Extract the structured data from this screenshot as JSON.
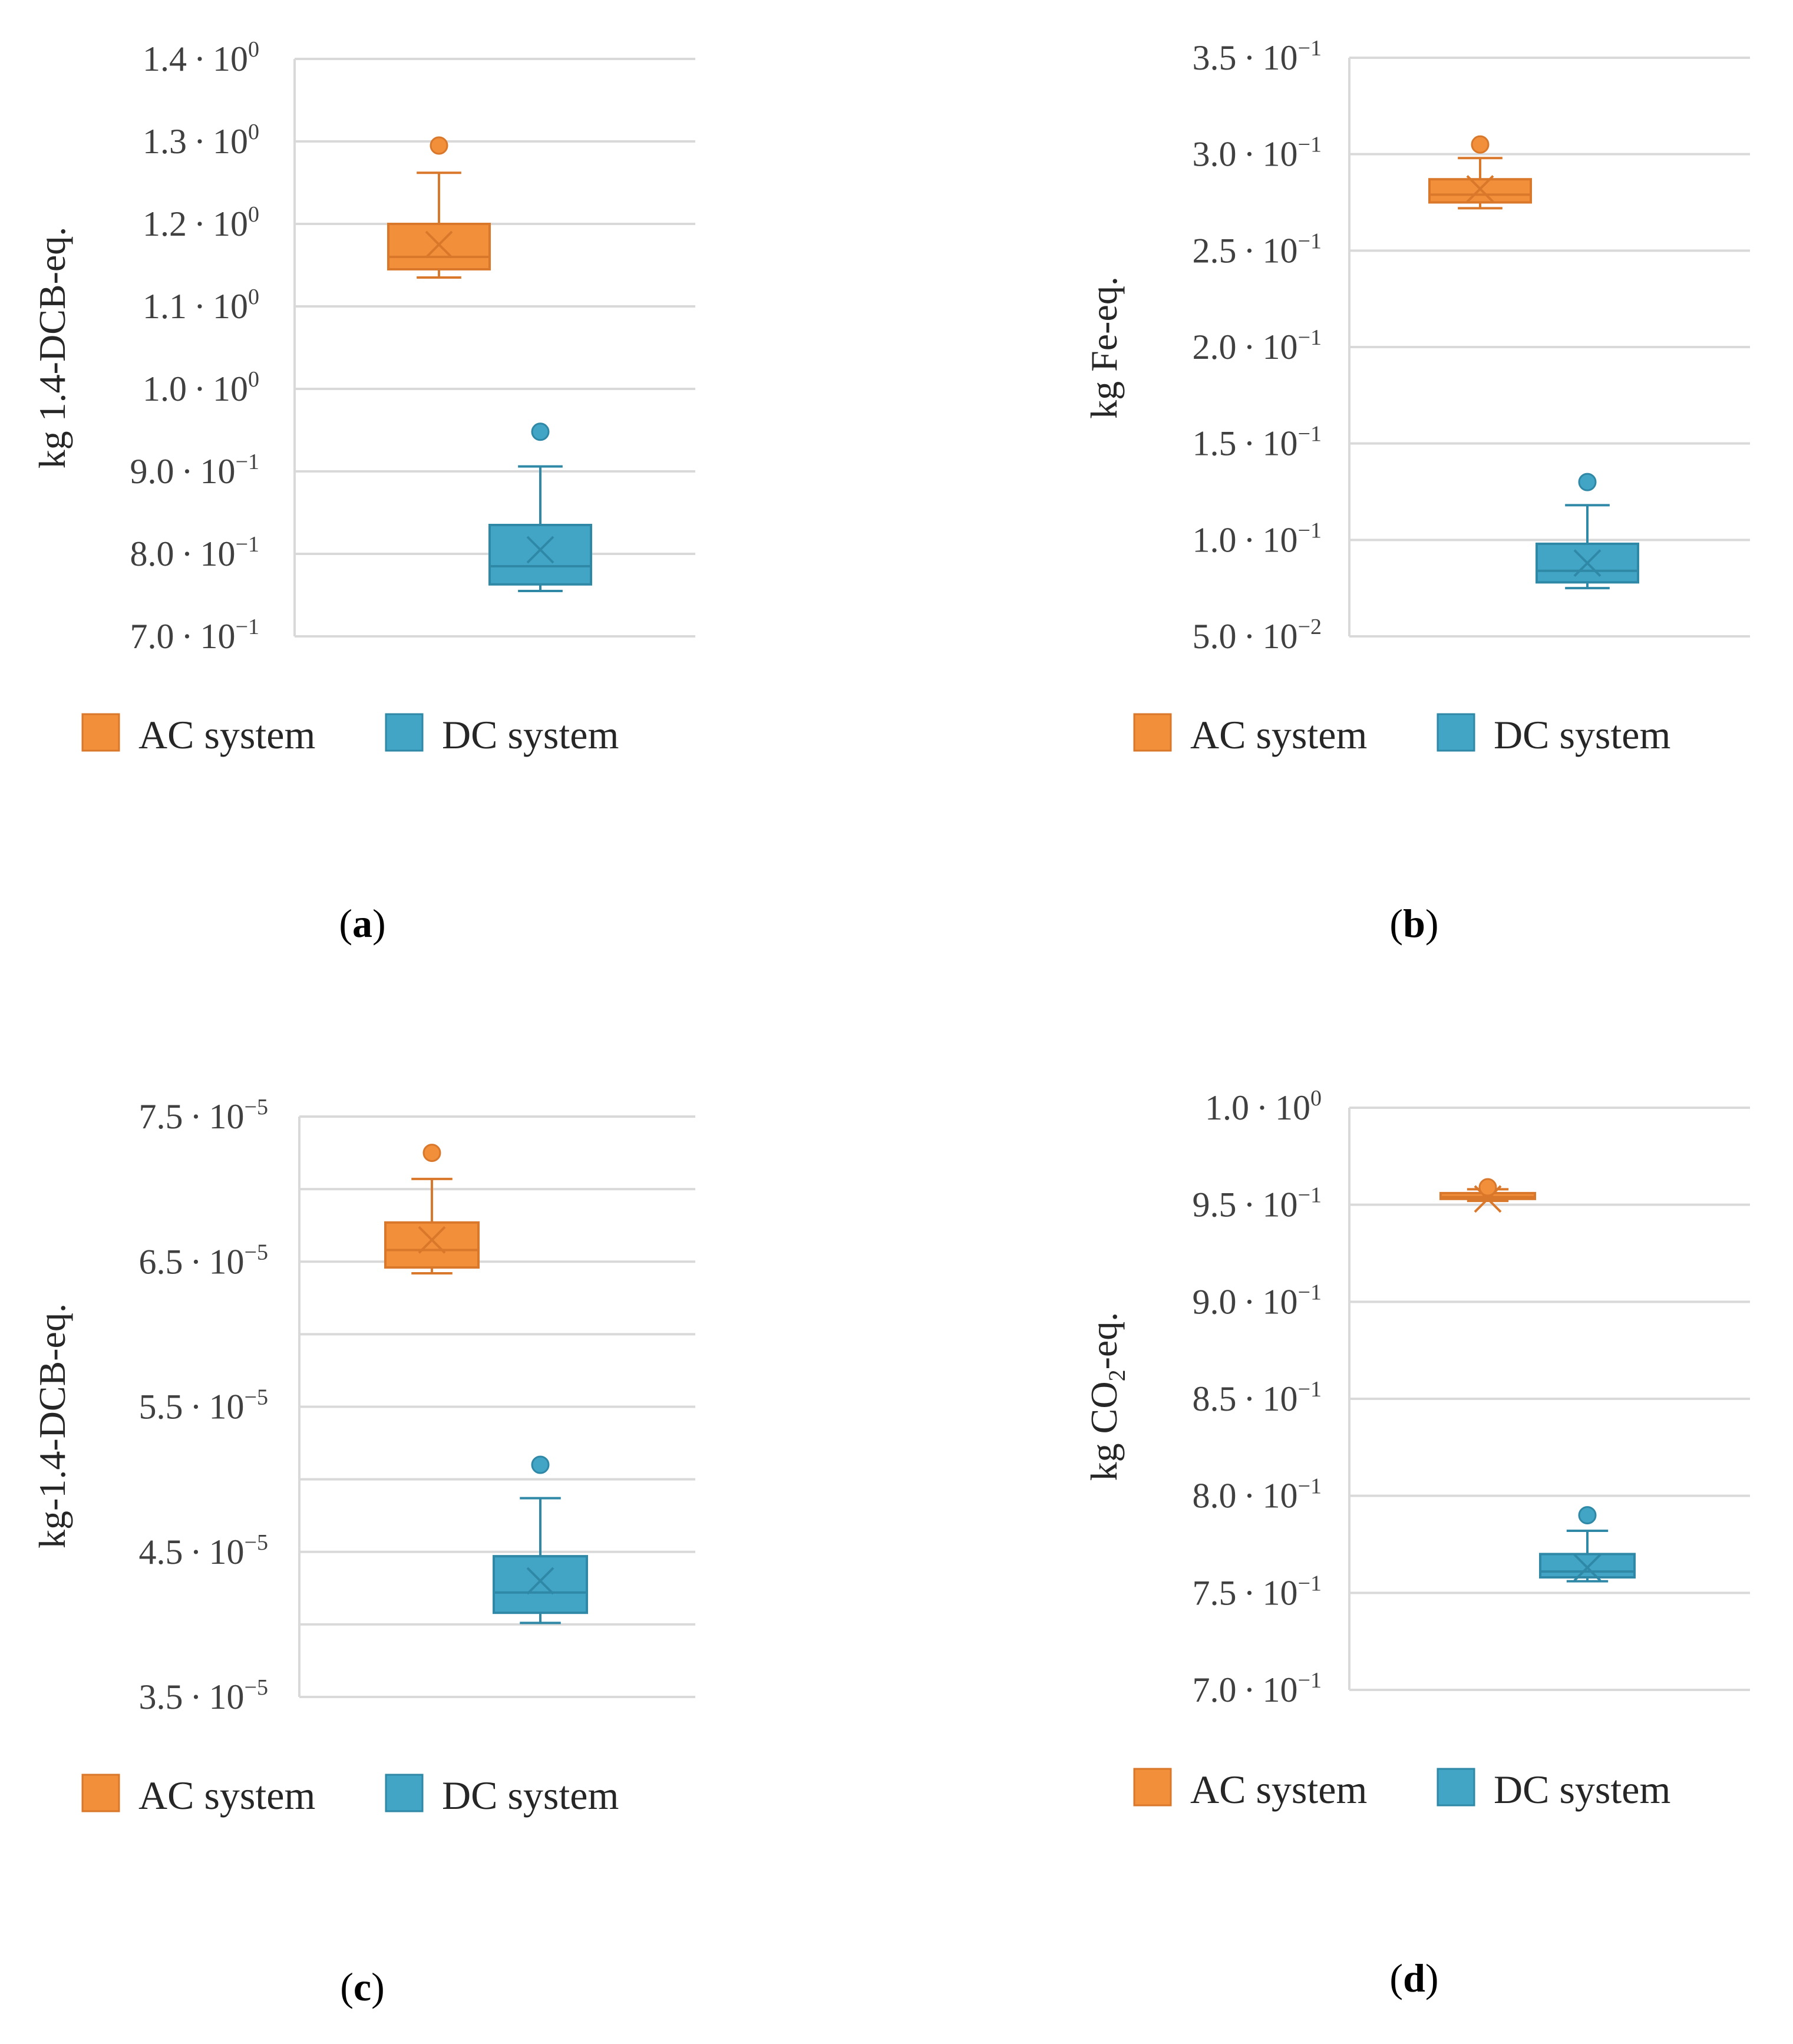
{
  "colors": {
    "ac": "#F28F3B",
    "ac_dark": "#D9772A",
    "dc": "#42A5C6",
    "dc_dark": "#2E88A6",
    "grid": "#D9D9D9",
    "axis": "#D9D9D9"
  },
  "legend": {
    "ac_label": "AC system",
    "dc_label": "DC system"
  },
  "chart_data": [
    {
      "type": "box",
      "panel_label": "a",
      "ylabel": "kg 1.4-DCB-eq.",
      "ylim": [
        0.7,
        1.4
      ],
      "yticks": [
        {
          "mantissa": "1.4",
          "exponent": "0",
          "value": 1.4
        },
        {
          "mantissa": "1.3",
          "exponent": "0",
          "value": 1.3
        },
        {
          "mantissa": "1.2",
          "exponent": "0",
          "value": 1.2
        },
        {
          "mantissa": "1.1",
          "exponent": "0",
          "value": 1.1
        },
        {
          "mantissa": "1.0",
          "exponent": "0",
          "value": 1.0
        },
        {
          "mantissa": "9.0",
          "exponent": "−1",
          "value": 0.9
        },
        {
          "mantissa": "8.0",
          "exponent": "−1",
          "value": 0.8
        },
        {
          "mantissa": "7.0",
          "exponent": "−1",
          "value": 0.7
        }
      ],
      "series": [
        {
          "name": "AC system",
          "min": 1.135,
          "q1": 1.145,
          "median": 1.16,
          "q3": 1.2,
          "max": 1.262,
          "mean": 1.175,
          "outliers": [
            1.295
          ]
        },
        {
          "name": "DC system",
          "min": 0.755,
          "q1": 0.763,
          "median": 0.785,
          "q3": 0.835,
          "max": 0.906,
          "mean": 0.805,
          "outliers": [
            0.948
          ]
        }
      ]
    },
    {
      "type": "box",
      "panel_label": "b",
      "ylabel": "kg Fe-eq.",
      "ylim": [
        0.05,
        0.35
      ],
      "yticks": [
        {
          "mantissa": "3.5",
          "exponent": "−1",
          "value": 0.35
        },
        {
          "mantissa": "3.0",
          "exponent": "−1",
          "value": 0.3
        },
        {
          "mantissa": "2.5",
          "exponent": "−1",
          "value": 0.25
        },
        {
          "mantissa": "2.0",
          "exponent": "−1",
          "value": 0.2
        },
        {
          "mantissa": "1.5",
          "exponent": "−1",
          "value": 0.15
        },
        {
          "mantissa": "1.0",
          "exponent": "−1",
          "value": 0.1
        },
        {
          "mantissa": "5.0",
          "exponent": "−2",
          "value": 0.05
        }
      ],
      "series": [
        {
          "name": "AC system",
          "min": 0.272,
          "q1": 0.275,
          "median": 0.279,
          "q3": 0.287,
          "max": 0.298,
          "mean": 0.282,
          "outliers": [
            0.305
          ]
        },
        {
          "name": "DC system",
          "min": 0.075,
          "q1": 0.078,
          "median": 0.084,
          "q3": 0.098,
          "max": 0.118,
          "mean": 0.088,
          "outliers": [
            0.13
          ]
        }
      ]
    },
    {
      "type": "box",
      "panel_label": "c",
      "ylabel": "kg-1.4-DCB-eq.",
      "ylim": [
        3.5e-05,
        7.5e-05
      ],
      "yticks": [
        {
          "mantissa": "7.5",
          "exponent": "−5",
          "value": 7.5e-05,
          "labeled": true
        },
        {
          "mantissa": "",
          "exponent": "",
          "value": 7e-05,
          "labeled": false
        },
        {
          "mantissa": "6.5",
          "exponent": "−5",
          "value": 6.5e-05,
          "labeled": true
        },
        {
          "mantissa": "",
          "exponent": "",
          "value": 6e-05,
          "labeled": false
        },
        {
          "mantissa": "5.5",
          "exponent": "−5",
          "value": 5.5e-05,
          "labeled": true
        },
        {
          "mantissa": "",
          "exponent": "",
          "value": 5e-05,
          "labeled": false
        },
        {
          "mantissa": "4.5",
          "exponent": "−5",
          "value": 4.5e-05,
          "labeled": true
        },
        {
          "mantissa": "",
          "exponent": "",
          "value": 4e-05,
          "labeled": false
        },
        {
          "mantissa": "3.5",
          "exponent": "−5",
          "value": 3.5e-05,
          "labeled": true
        }
      ],
      "series": [
        {
          "name": "AC system",
          "min": 6.42e-05,
          "q1": 6.46e-05,
          "median": 6.58e-05,
          "q3": 6.77e-05,
          "max": 7.07e-05,
          "mean": 6.65e-05,
          "outliers": [
            7.25e-05
          ]
        },
        {
          "name": "DC system",
          "min": 4.01e-05,
          "q1": 4.08e-05,
          "median": 4.22e-05,
          "q3": 4.47e-05,
          "max": 4.87e-05,
          "mean": 4.3e-05,
          "outliers": [
            5.1e-05
          ]
        }
      ]
    },
    {
      "type": "box",
      "panel_label": "d",
      "ylabel": "kg CO",
      "ylabel_sub": "2",
      "ylabel_suffix": "-eq.",
      "ylim": [
        0.7,
        1.0
      ],
      "yticks": [
        {
          "mantissa": "1.0",
          "exponent": "0",
          "value": 1.0
        },
        {
          "mantissa": "9.5",
          "exponent": "−1",
          "value": 0.95
        },
        {
          "mantissa": "9.0",
          "exponent": "−1",
          "value": 0.9
        },
        {
          "mantissa": "8.5",
          "exponent": "−1",
          "value": 0.85
        },
        {
          "mantissa": "8.0",
          "exponent": "−1",
          "value": 0.8
        },
        {
          "mantissa": "7.5",
          "exponent": "−1",
          "value": 0.75
        },
        {
          "mantissa": "7.0",
          "exponent": "−1",
          "value": 0.7
        }
      ],
      "series": [
        {
          "name": "AC system",
          "min": 0.952,
          "q1": 0.953,
          "median": 0.954,
          "q3": 0.956,
          "max": 0.958,
          "mean": 0.953,
          "outliers": [
            0.959
          ]
        },
        {
          "name": "DC system",
          "min": 0.756,
          "q1": 0.758,
          "median": 0.761,
          "q3": 0.77,
          "max": 0.782,
          "mean": 0.763,
          "outliers": [
            0.79
          ]
        }
      ]
    }
  ]
}
